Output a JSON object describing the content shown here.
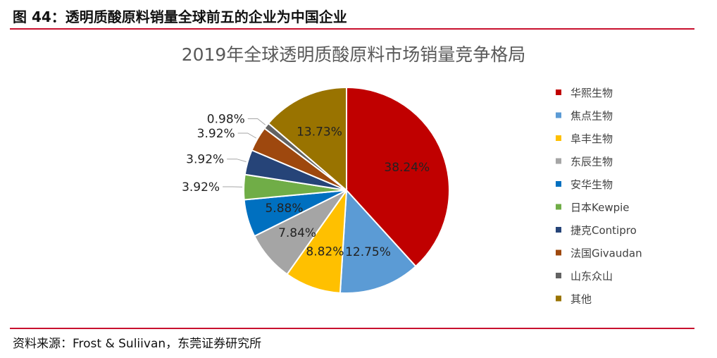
{
  "figure": {
    "title": "图 44：透明质酸原料销量全球前五的企业为中国企业",
    "source": "资料来源：Frost & Suliivan，东莞证券研究所"
  },
  "chart_data": {
    "type": "pie",
    "title": "2019年全球透明质酸原料市场销量竞争格局",
    "legend_position": "right",
    "start_angle_deg": 0,
    "direction": "clockwise",
    "slices": [
      {
        "name": "华熙生物",
        "value": 38.24,
        "label": "38.24%",
        "color": "#c00000"
      },
      {
        "name": "焦点生物",
        "value": 12.75,
        "label": "12.75%",
        "color": "#5b9bd5"
      },
      {
        "name": "阜丰生物",
        "value": 8.82,
        "label": "8.82%",
        "color": "#ffc000"
      },
      {
        "name": "东辰生物",
        "value": 7.84,
        "label": "7.84%",
        "color": "#a5a5a5"
      },
      {
        "name": "安华生物",
        "value": 5.88,
        "label": "5.88%",
        "color": "#0070c0"
      },
      {
        "name": "日本Kewpie",
        "value": 3.92,
        "label": "3.92%",
        "color": "#70ad47"
      },
      {
        "name": "捷克Contipro",
        "value": 3.92,
        "label": "3.92%",
        "color": "#264478"
      },
      {
        "name": "法国Givaudan",
        "value": 3.92,
        "label": "3.92%",
        "color": "#9e480e"
      },
      {
        "name": "山东众山",
        "value": 0.98,
        "label": "0.98%",
        "color": "#636363"
      },
      {
        "name": "其他",
        "value": 13.73,
        "label": "13.73%",
        "color": "#997300"
      }
    ]
  }
}
